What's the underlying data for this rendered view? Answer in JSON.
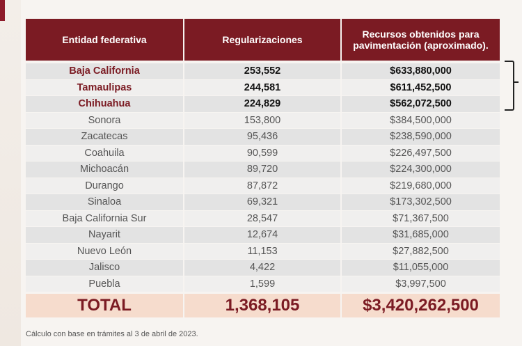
{
  "headers": [
    "Entidad federativa",
    "Regularizaciones",
    "Recursos obtenidos para pavimentación (aproximado)."
  ],
  "rows": [
    {
      "state": "Baja California",
      "regs": "253,552",
      "funds": "$633,880,000",
      "highlight": true
    },
    {
      "state": "Tamaulipas",
      "regs": "244,581",
      "funds": "$611,452,500",
      "highlight": true
    },
    {
      "state": "Chihuahua",
      "regs": "224,829",
      "funds": "$562,072,500",
      "highlight": true
    },
    {
      "state": "Sonora",
      "regs": "153,800",
      "funds": "$384,500,000",
      "highlight": false
    },
    {
      "state": "Zacatecas",
      "regs": "95,436",
      "funds": "$238,590,000",
      "highlight": false
    },
    {
      "state": "Coahuila",
      "regs": "90,599",
      "funds": "$226,497,500",
      "highlight": false
    },
    {
      "state": "Michoacán",
      "regs": "89,720",
      "funds": "$224,300,000",
      "highlight": false
    },
    {
      "state": "Durango",
      "regs": "87,872",
      "funds": "$219,680,000",
      "highlight": false
    },
    {
      "state": "Sinaloa",
      "regs": "69,321",
      "funds": "$173,302,500",
      "highlight": false
    },
    {
      "state": "Baja California Sur",
      "regs": "28,547",
      "funds": "$71,367,500",
      "highlight": false
    },
    {
      "state": "Nayarit",
      "regs": "12,674",
      "funds": "$31,685,000",
      "highlight": false
    },
    {
      "state": "Nuevo León",
      "regs": "11,153",
      "funds": "$27,882,500",
      "highlight": false
    },
    {
      "state": "Jalisco",
      "regs": "4,422",
      "funds": "$11,055,000",
      "highlight": false
    },
    {
      "state": "Puebla",
      "regs": "1,599",
      "funds": "$3,997,500",
      "highlight": false
    }
  ],
  "total": {
    "label": "TOTAL",
    "regs": "1,368,105",
    "funds": "$3,420,262,500"
  },
  "footnote": "Cálculo con base en trámites al 3 de abril de 2023.",
  "colors": {
    "header": "#7b1b23",
    "total_bg": "#f6dccd"
  }
}
